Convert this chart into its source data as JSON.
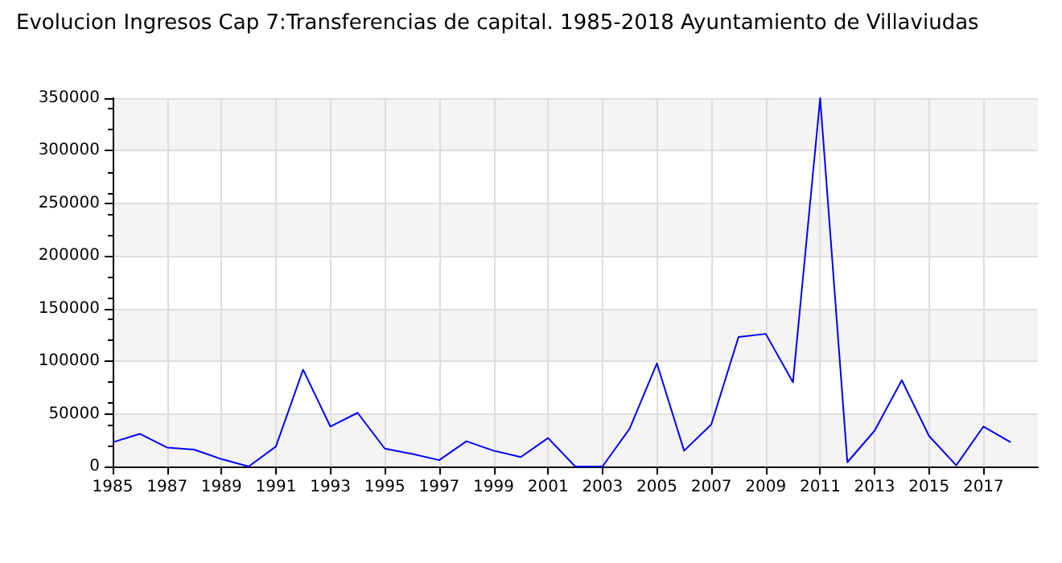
{
  "chart_data": {
    "type": "line",
    "title": "Evolucion Ingresos Cap 7:Transferencias de capital. 1985-2018 Ayuntamiento de Villaviudas",
    "x": [
      1985,
      1986,
      1987,
      1988,
      1989,
      1990,
      1991,
      1992,
      1993,
      1994,
      1995,
      1996,
      1997,
      1998,
      1999,
      2000,
      2001,
      2002,
      2003,
      2004,
      2005,
      2006,
      2007,
      2008,
      2009,
      2010,
      2011,
      2012,
      2013,
      2014,
      2015,
      2016,
      2017,
      2018
    ],
    "series": [
      {
        "color": "#0000ff",
        "values": [
          23000,
          31000,
          18000,
          16000,
          7000,
          0,
          19000,
          92000,
          38000,
          51000,
          17000,
          12000,
          6000,
          24000,
          15000,
          9000,
          27000,
          0,
          0,
          36000,
          98000,
          15000,
          40000,
          123000,
          126000,
          80000,
          350000,
          4000,
          34000,
          82000,
          29000,
          1000,
          38000,
          23000
        ]
      }
    ],
    "xlim": [
      1985,
      2019
    ],
    "xticks": [
      1985,
      1987,
      1989,
      1991,
      1993,
      1995,
      1997,
      1999,
      2001,
      2003,
      2005,
      2007,
      2009,
      2011,
      2013,
      2015,
      2017
    ],
    "ylim": [
      0,
      350000
    ],
    "yticks": [
      0,
      50000,
      100000,
      150000,
      200000,
      250000,
      300000,
      350000
    ],
    "grid": true,
    "marker": "none",
    "line_style": "solid"
  }
}
